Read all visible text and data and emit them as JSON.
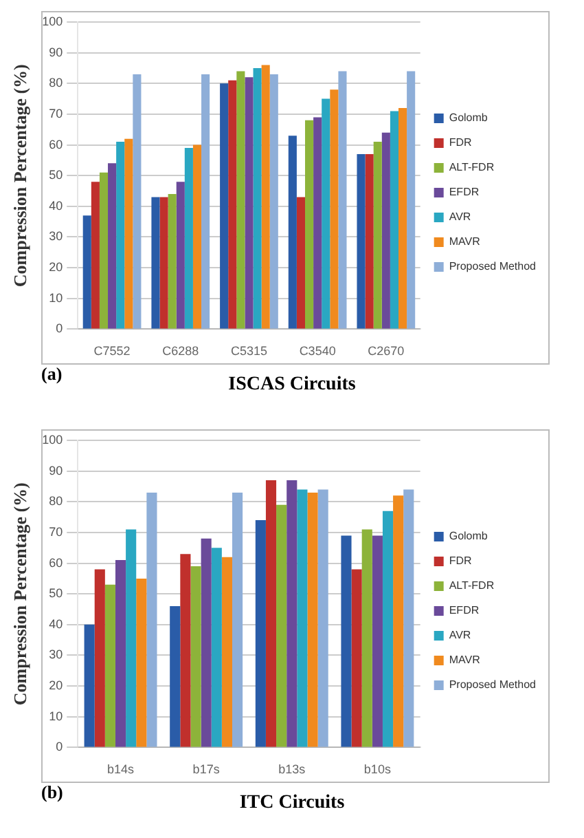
{
  "chart_data": [
    {
      "type": "bar",
      "xlabel": "ISCAS Circuits",
      "ylabel": "Compression Percentage (%)",
      "annotations": [
        "(a)"
      ],
      "categories": [
        "C7552",
        "C6288",
        "C5315",
        "C3540",
        "C2670"
      ],
      "series": [
        {
          "name": "Golomb",
          "color": "#2a5ca8",
          "values": [
            37,
            43,
            80,
            63,
            57
          ]
        },
        {
          "name": "FDR",
          "color": "#c0302c",
          "values": [
            48,
            43,
            81,
            43,
            57
          ]
        },
        {
          "name": "ALT-FDR",
          "color": "#8db33a",
          "values": [
            51,
            44,
            84,
            68,
            61
          ]
        },
        {
          "name": "EFDR",
          "color": "#6a4a9a",
          "values": [
            54,
            48,
            82,
            69,
            64
          ]
        },
        {
          "name": "AVR",
          "color": "#2aa7c2",
          "values": [
            61,
            59,
            85,
            75,
            71
          ]
        },
        {
          "name": "MAVR",
          "color": "#f08a1e",
          "values": [
            62,
            60,
            86,
            78,
            72
          ]
        },
        {
          "name": "Proposed Method",
          "color": "#8eaed8",
          "values": [
            83,
            83,
            83,
            84,
            84
          ]
        }
      ],
      "ylim": [
        0,
        100
      ],
      "yticks": [
        0,
        10,
        20,
        30,
        40,
        50,
        60,
        70,
        80,
        90,
        100
      ],
      "grid": "y",
      "legend": "right"
    },
    {
      "type": "bar",
      "xlabel": "ITC Circuits",
      "ylabel": "Compression Percentage (%)",
      "annotations": [
        "(b)"
      ],
      "categories": [
        "b14s",
        "b17s",
        "b13s",
        "b10s"
      ],
      "series": [
        {
          "name": "Golomb",
          "color": "#2a5ca8",
          "values": [
            40,
            46,
            74,
            69
          ]
        },
        {
          "name": "FDR",
          "color": "#c0302c",
          "values": [
            58,
            63,
            87,
            58
          ]
        },
        {
          "name": "ALT-FDR",
          "color": "#8db33a",
          "values": [
            53,
            59,
            79,
            71
          ]
        },
        {
          "name": "EFDR",
          "color": "#6a4a9a",
          "values": [
            61,
            68,
            87,
            69
          ]
        },
        {
          "name": "AVR",
          "color": "#2aa7c2",
          "values": [
            71,
            65,
            84,
            77
          ]
        },
        {
          "name": "MAVR",
          "color": "#f08a1e",
          "values": [
            55,
            62,
            83,
            82
          ]
        },
        {
          "name": "Proposed Method",
          "color": "#8eaed8",
          "values": [
            83,
            83,
            84,
            84
          ]
        }
      ],
      "ylim": [
        0,
        100
      ],
      "yticks": [
        0,
        10,
        20,
        30,
        40,
        50,
        60,
        70,
        80,
        90,
        100
      ],
      "grid": "y",
      "legend": "right"
    }
  ]
}
